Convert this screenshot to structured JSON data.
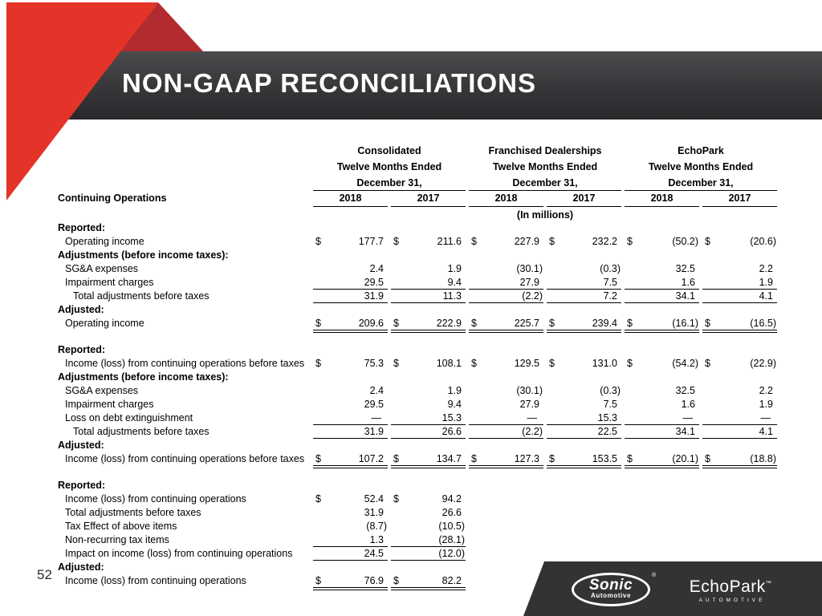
{
  "header": {
    "title": "NON-GAAP RECONCILIATIONS"
  },
  "colors": {
    "accent_red": "#e43328",
    "accent_dark_red": "#b22b2e",
    "banner_top": "#4b4b4e",
    "banner_bottom": "#28282b",
    "panel_dark": "#333336"
  },
  "table": {
    "row_header": "Continuing Operations",
    "unit_note": "(In millions)",
    "currency_symbol": "$",
    "groups": [
      {
        "name": "Consolidated",
        "line1": "Twelve Months Ended",
        "line2": "December 31,"
      },
      {
        "name": "Franchised Dealerships",
        "line1": "Twelve Months Ended",
        "line2": "December 31,"
      },
      {
        "name": "EchoPark",
        "line1": "Twelve Months Ended",
        "line2": "December 31,"
      }
    ],
    "years": [
      "2018",
      "2017",
      "2018",
      "2017",
      "2018",
      "2017"
    ],
    "sections": [
      {
        "rows": [
          {
            "label": "Reported:",
            "bold": true,
            "indent": 0
          },
          {
            "label": "Operating income",
            "indent": 1,
            "dollar": true,
            "values": [
              "177.7",
              "211.6",
              "227.9",
              "232.2",
              "(50.2)",
              "(20.6)"
            ]
          },
          {
            "label": "Adjustments (before income taxes):",
            "bold": true,
            "indent": 0
          },
          {
            "label": "SG&A expenses",
            "indent": 1,
            "values": [
              "2.4",
              "1.9",
              "(30.1)",
              "(0.3)",
              "32.5",
              "2.2"
            ]
          },
          {
            "label": "Impairment charges",
            "indent": 1,
            "underline": "single",
            "values": [
              "29.5",
              "9.4",
              "27.9",
              "7.5",
              "1.6",
              "1.9"
            ]
          },
          {
            "label": "Total adjustments before taxes",
            "indent": 2,
            "underline": "single",
            "values": [
              "31.9",
              "11.3",
              "(2.2)",
              "7.2",
              "34.1",
              "4.1"
            ]
          },
          {
            "label": "Adjusted:",
            "bold": true,
            "indent": 0
          },
          {
            "label": "Operating income",
            "indent": 1,
            "dollar": true,
            "underline": "double",
            "values": [
              "209.6",
              "222.9",
              "225.7",
              "239.4",
              "(16.1)",
              "(16.5)"
            ]
          }
        ]
      },
      {
        "rows": [
          {
            "label": "Reported:",
            "bold": true,
            "indent": 0
          },
          {
            "label": "Income (loss) from continuing operations before taxes",
            "indent": 1,
            "dollar": true,
            "values": [
              "75.3",
              "108.1",
              "129.5",
              "131.0",
              "(54.2)",
              "(22.9)"
            ]
          },
          {
            "label": "Adjustments (before income taxes):",
            "bold": true,
            "indent": 0
          },
          {
            "label": "SG&A expenses",
            "indent": 1,
            "values": [
              "2.4",
              "1.9",
              "(30.1)",
              "(0.3)",
              "32.5",
              "2.2"
            ]
          },
          {
            "label": "Impairment charges",
            "indent": 1,
            "values": [
              "29.5",
              "9.4",
              "27.9",
              "7.5",
              "1.6",
              "1.9"
            ]
          },
          {
            "label": "Loss on debt extinguishment",
            "indent": 1,
            "underline": "single",
            "values": [
              "—",
              "15.3",
              "—",
              "15.3",
              "—",
              "—"
            ]
          },
          {
            "label": "Total adjustments before taxes",
            "indent": 2,
            "underline": "single",
            "values": [
              "31.9",
              "26.6",
              "(2.2)",
              "22.5",
              "34.1",
              "4.1"
            ]
          },
          {
            "label": "Adjusted:",
            "bold": true,
            "indent": 0
          },
          {
            "label": "Income (loss) from continuing operations before taxes",
            "indent": 1,
            "dollar": true,
            "underline": "double",
            "values": [
              "107.2",
              "134.7",
              "127.3",
              "153.5",
              "(20.1)",
              "(18.8)"
            ]
          }
        ]
      },
      {
        "rows": [
          {
            "label": "Reported:",
            "bold": true,
            "indent": 0
          },
          {
            "label": "Income (loss) from continuing operations",
            "indent": 1,
            "dollar": true,
            "values": [
              "52.4",
              "94.2",
              "",
              "",
              "",
              ""
            ]
          },
          {
            "label": "Total adjustments before taxes",
            "indent": 1,
            "values": [
              "31.9",
              "26.6",
              "",
              "",
              "",
              ""
            ]
          },
          {
            "label": "Tax Effect of above items",
            "indent": 1,
            "values": [
              "(8.7)",
              "(10.5)",
              "",
              "",
              "",
              ""
            ]
          },
          {
            "label": "Non-recurring tax items",
            "indent": 1,
            "underline": "single",
            "values": [
              "1.3",
              "(28.1)",
              "",
              "",
              "",
              ""
            ]
          },
          {
            "label": "Impact on income (loss) from continuing operations",
            "indent": 1,
            "underline": "single",
            "values": [
              "24.5",
              "(12.0)",
              "",
              "",
              "",
              ""
            ]
          },
          {
            "label": "Adjusted:",
            "bold": true,
            "indent": 0
          },
          {
            "label": "Income (loss) from continuing operations",
            "indent": 1,
            "dollar": true,
            "underline": "double",
            "values": [
              "76.9",
              "82.2",
              "",
              "",
              "",
              ""
            ]
          }
        ]
      }
    ]
  },
  "footer": {
    "page_number": "52",
    "sonic_logo": {
      "name": "Sonic",
      "tagline": "Automotive",
      "mark": "®"
    },
    "echopark_logo": {
      "name": "EchoPark",
      "tagline": "AUTOMOTIVE",
      "mark": "™"
    }
  }
}
